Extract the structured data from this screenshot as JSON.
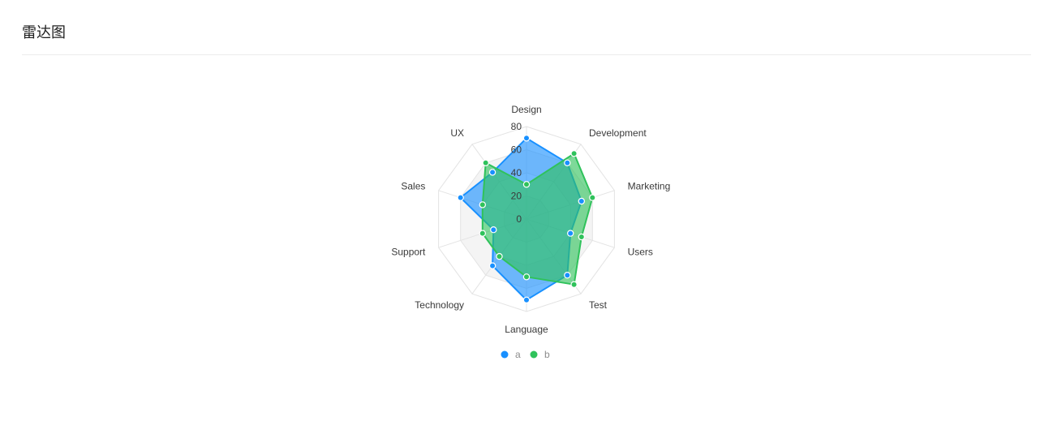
{
  "header": {
    "title": "雷达图"
  },
  "chart_data": {
    "type": "radar",
    "title": "",
    "categories": [
      "Design",
      "Development",
      "Marketing",
      "Users",
      "Test",
      "Language",
      "Technology",
      "Support",
      "Sales",
      "UX"
    ],
    "rlim": [
      0,
      80
    ],
    "ticks": [
      0,
      20,
      40,
      60,
      80
    ],
    "grid": true,
    "legend_position": "bottom",
    "series": [
      {
        "name": "a",
        "values": [
          70,
          60,
          50,
          40,
          60,
          70,
          50,
          30,
          60,
          50
        ],
        "color": "#1890ff"
      },
      {
        "name": "b",
        "values": [
          30,
          70,
          60,
          50,
          70,
          50,
          40,
          40,
          40,
          60
        ],
        "color": "#2fc25b"
      }
    ]
  }
}
